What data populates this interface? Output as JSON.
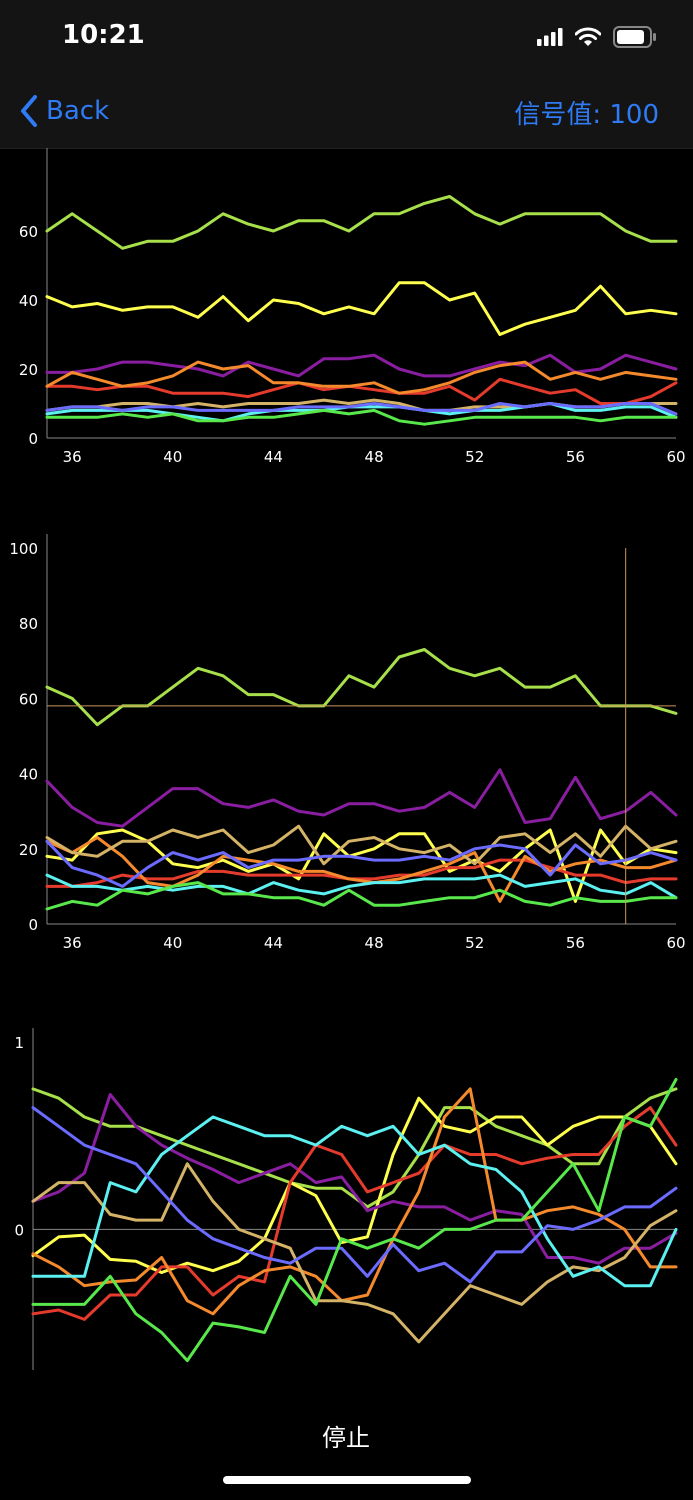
{
  "status": {
    "time": "10:21"
  },
  "nav": {
    "back_label": "Back",
    "signal_label": "信号值: 100"
  },
  "footer": {
    "stop_label": "停止"
  },
  "series_colors": [
    "#a7e04a",
    "#ffff4d",
    "#8a1ea0",
    "#e53b2c",
    "#f58a2d",
    "#d4b367",
    "#5cf0f0",
    "#6b6bff",
    "#59e84b"
  ],
  "chart_data": [
    {
      "type": "line",
      "x": [
        35,
        36,
        37,
        38,
        39,
        40,
        41,
        42,
        43,
        44,
        45,
        46,
        47,
        48,
        49,
        50,
        51,
        52,
        53,
        54,
        55,
        56,
        57,
        58,
        59,
        60
      ],
      "xticks": [
        36,
        40,
        44,
        48,
        52,
        56,
        60
      ],
      "yticks": [
        0,
        20,
        40,
        60
      ],
      "ylim": [
        0,
        80
      ],
      "series": [
        {
          "values": [
            60,
            65,
            60,
            55,
            57,
            57,
            60,
            65,
            62,
            60,
            63,
            63,
            60,
            65,
            65,
            68,
            70,
            65,
            62,
            65,
            65,
            65,
            65,
            60,
            57,
            57
          ]
        },
        {
          "values": [
            41,
            38,
            39,
            37,
            38,
            38,
            35,
            41,
            34,
            40,
            39,
            36,
            38,
            36,
            45,
            45,
            40,
            42,
            30,
            33,
            35,
            37,
            44,
            36,
            37,
            36
          ]
        },
        {
          "values": [
            19,
            19,
            20,
            22,
            22,
            21,
            20,
            18,
            22,
            20,
            18,
            23,
            23,
            24,
            20,
            18,
            18,
            20,
            22,
            21,
            24,
            19,
            20,
            24,
            22,
            20
          ]
        },
        {
          "values": [
            15,
            15,
            14,
            15,
            15,
            13,
            13,
            13,
            12,
            14,
            16,
            14,
            15,
            14,
            13,
            13,
            15,
            11,
            17,
            15,
            13,
            14,
            10,
            10,
            12,
            16
          ]
        },
        {
          "values": [
            15,
            19,
            17,
            15,
            16,
            18,
            22,
            20,
            21,
            16,
            16,
            15,
            15,
            16,
            13,
            14,
            16,
            19,
            21,
            22,
            17,
            19,
            17,
            19,
            18,
            17
          ]
        },
        {
          "values": [
            8,
            9,
            9,
            10,
            10,
            9,
            10,
            9,
            10,
            10,
            10,
            11,
            10,
            11,
            10,
            8,
            8,
            9,
            9,
            9,
            10,
            9,
            9,
            10,
            10,
            10
          ]
        },
        {
          "values": [
            7,
            8,
            8,
            8,
            8,
            7,
            6,
            5,
            7,
            8,
            8,
            8,
            9,
            9,
            9,
            8,
            7,
            8,
            8,
            9,
            10,
            8,
            8,
            9,
            9,
            6
          ]
        },
        {
          "values": [
            8,
            9,
            9,
            8,
            9,
            9,
            8,
            8,
            8,
            8,
            9,
            9,
            9,
            10,
            9,
            8,
            8,
            8,
            10,
            9,
            10,
            9,
            9,
            10,
            10,
            7
          ]
        },
        {
          "values": [
            6,
            6,
            6,
            7,
            6,
            7,
            5,
            5,
            6,
            6,
            7,
            8,
            7,
            8,
            5,
            4,
            5,
            6,
            6,
            6,
            6,
            6,
            5,
            6,
            6,
            6
          ]
        }
      ]
    },
    {
      "type": "line",
      "x": [
        35,
        36,
        37,
        38,
        39,
        40,
        41,
        42,
        43,
        44,
        45,
        46,
        47,
        48,
        49,
        50,
        51,
        52,
        53,
        54,
        55,
        56,
        57,
        58,
        59,
        60
      ],
      "xticks": [
        36,
        40,
        44,
        48,
        52,
        56,
        60
      ],
      "yticks": [
        0,
        20,
        40,
        60,
        80,
        100
      ],
      "ylim": [
        0,
        100
      ],
      "crosshair": {
        "x": 58,
        "y": 58
      },
      "series": [
        {
          "values": [
            63,
            60,
            53,
            58,
            58,
            63,
            68,
            66,
            61,
            61,
            58,
            58,
            66,
            63,
            71,
            73,
            68,
            66,
            68,
            63,
            63,
            66,
            58,
            58,
            58,
            56
          ]
        },
        {
          "values": [
            18,
            17,
            24,
            25,
            22,
            16,
            15,
            17,
            14,
            16,
            12,
            24,
            18,
            20,
            24,
            24,
            14,
            17,
            14,
            20,
            25,
            6,
            25,
            16,
            20,
            19
          ]
        },
        {
          "values": [
            38,
            31,
            27,
            26,
            31,
            36,
            36,
            32,
            31,
            33,
            30,
            29,
            32,
            32,
            30,
            31,
            35,
            31,
            41,
            27,
            28,
            39,
            28,
            30,
            35,
            29
          ]
        },
        {
          "values": [
            10,
            10,
            11,
            13,
            12,
            12,
            14,
            14,
            13,
            13,
            13,
            13,
            12,
            12,
            13,
            13,
            15,
            15,
            17,
            17,
            15,
            13,
            13,
            11,
            12,
            12
          ]
        },
        {
          "values": [
            22,
            19,
            23,
            18,
            11,
            10,
            13,
            18,
            17,
            16,
            14,
            14,
            12,
            11,
            12,
            14,
            16,
            19,
            6,
            18,
            14,
            16,
            17,
            15,
            15,
            17
          ]
        },
        {
          "values": [
            23,
            19,
            18,
            22,
            22,
            25,
            23,
            25,
            19,
            21,
            26,
            16,
            22,
            23,
            20,
            19,
            21,
            16,
            23,
            24,
            19,
            24,
            18,
            26,
            20,
            22
          ]
        },
        {
          "values": [
            13,
            10,
            10,
            9,
            10,
            9,
            10,
            10,
            8,
            11,
            9,
            8,
            10,
            11,
            11,
            12,
            12,
            12,
            13,
            10,
            11,
            12,
            9,
            8,
            11,
            7
          ]
        },
        {
          "values": [
            22,
            15,
            13,
            10,
            15,
            19,
            17,
            19,
            15,
            17,
            17,
            18,
            18,
            17,
            17,
            18,
            17,
            20,
            21,
            20,
            13,
            21,
            16,
            17,
            19,
            17
          ]
        },
        {
          "values": [
            4,
            6,
            5,
            9,
            8,
            10,
            11,
            8,
            8,
            7,
            7,
            5,
            9,
            5,
            5,
            6,
            7,
            7,
            9,
            6,
            5,
            7,
            6,
            6,
            7,
            7
          ]
        }
      ]
    },
    {
      "type": "line",
      "x": [
        35,
        36,
        37,
        38,
        39,
        40,
        41,
        42,
        43,
        44,
        45,
        46,
        47,
        48,
        49,
        50,
        51,
        52,
        53,
        54,
        55,
        56,
        57,
        58,
        59,
        60
      ],
      "yticks": [
        0,
        1
      ],
      "ylim": [
        -0.75,
        1
      ],
      "series": [
        {
          "values": [
            0.75,
            0.7,
            0.6,
            0.55,
            0.55,
            0.5,
            0.45,
            0.4,
            0.35,
            0.3,
            0.25,
            0.22,
            0.22,
            0.12,
            0.2,
            0.4,
            0.65,
            0.65,
            0.55,
            0.5,
            0.45,
            0.35,
            0.35,
            0.6,
            0.7,
            0.75
          ]
        },
        {
          "values": [
            -0.14,
            -0.04,
            -0.03,
            -0.16,
            -0.17,
            -0.23,
            -0.18,
            -0.22,
            -0.17,
            -0.05,
            0.25,
            0.18,
            -0.07,
            -0.04,
            0.4,
            0.7,
            0.55,
            0.52,
            0.6,
            0.6,
            0.45,
            0.55,
            0.6,
            0.6,
            0.55,
            0.35
          ]
        },
        {
          "values": [
            0.15,
            0.2,
            0.3,
            0.72,
            0.55,
            0.45,
            0.38,
            0.32,
            0.25,
            0.3,
            0.35,
            0.25,
            0.28,
            0.1,
            0.15,
            0.12,
            0.12,
            0.05,
            0.1,
            0.08,
            -0.15,
            -0.15,
            -0.18,
            -0.1,
            -0.1,
            -0.02
          ]
        },
        {
          "values": [
            -0.45,
            -0.43,
            -0.48,
            -0.35,
            -0.35,
            -0.2,
            -0.2,
            -0.35,
            -0.25,
            -0.28,
            0.25,
            0.45,
            0.4,
            0.2,
            0.25,
            0.3,
            0.45,
            0.4,
            0.4,
            0.35,
            0.38,
            0.4,
            0.4,
            0.55,
            0.65,
            0.45
          ]
        },
        {
          "values": [
            -0.13,
            -0.2,
            -0.3,
            -0.28,
            -0.27,
            -0.15,
            -0.38,
            -0.45,
            -0.3,
            -0.22,
            -0.2,
            -0.25,
            -0.38,
            -0.35,
            -0.05,
            0.2,
            0.6,
            0.75,
            0.05,
            0.05,
            0.1,
            0.12,
            0.08,
            0.0,
            -0.2,
            -0.2
          ]
        },
        {
          "values": [
            0.15,
            0.25,
            0.25,
            0.08,
            0.05,
            0.05,
            0.35,
            0.15,
            0.0,
            -0.05,
            -0.1,
            -0.38,
            -0.38,
            -0.4,
            -0.45,
            -0.6,
            -0.45,
            -0.3,
            -0.35,
            -0.4,
            -0.28,
            -0.2,
            -0.22,
            -0.15,
            0.02,
            0.1
          ]
        },
        {
          "values": [
            -0.25,
            -0.25,
            -0.25,
            0.25,
            0.2,
            0.4,
            0.5,
            0.6,
            0.55,
            0.5,
            0.5,
            0.45,
            0.55,
            0.5,
            0.55,
            0.4,
            0.45,
            0.35,
            0.32,
            0.2,
            -0.05,
            -0.25,
            -0.2,
            -0.3,
            -0.3,
            0.0
          ]
        },
        {
          "values": [
            0.65,
            0.55,
            0.45,
            0.4,
            0.35,
            0.2,
            0.05,
            -0.05,
            -0.1,
            -0.15,
            -0.18,
            -0.1,
            -0.1,
            -0.25,
            -0.08,
            -0.22,
            -0.18,
            -0.28,
            -0.12,
            -0.12,
            0.02,
            0.0,
            0.05,
            0.12,
            0.12,
            0.22
          ]
        },
        {
          "values": [
            -0.4,
            -0.4,
            -0.4,
            -0.25,
            -0.45,
            -0.55,
            -0.7,
            -0.5,
            -0.52,
            -0.55,
            -0.25,
            -0.4,
            -0.05,
            -0.1,
            -0.05,
            -0.1,
            0.0,
            0.0,
            0.05,
            0.05,
            0.2,
            0.35,
            0.1,
            0.6,
            0.55,
            0.8
          ]
        }
      ]
    }
  ]
}
